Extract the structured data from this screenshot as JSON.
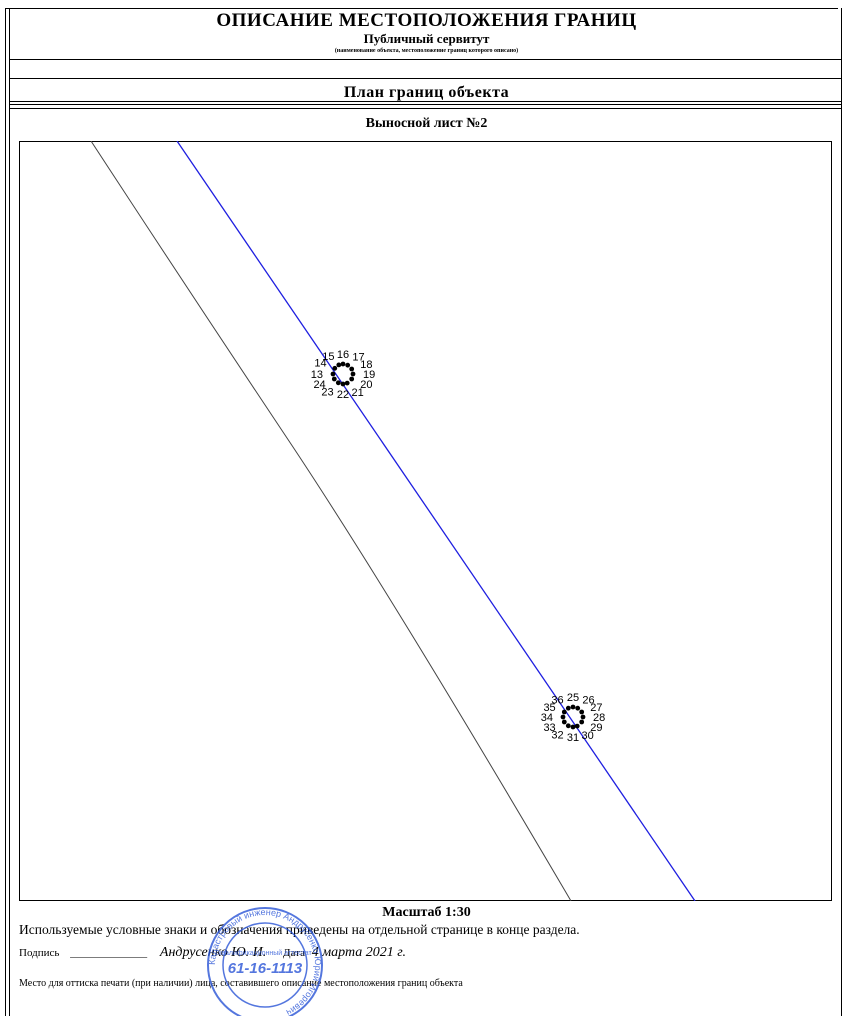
{
  "header": {
    "title": "ОПИСАНИЕ МЕСТОПОЛОЖЕНИЯ ГРАНИЦ",
    "subtitle": "Публичный сервитут",
    "caption": "(наименование объекта, местоположение границ которого описано)"
  },
  "plan": {
    "heading": "План границ объекта",
    "sheet_label": "Выносной лист №2",
    "colors": {
      "boundary_line": "#1f1fe0",
      "road_edge": "#444444",
      "points": "#000000"
    },
    "point_groups": [
      {
        "points": [
          {
            "label": "13",
            "angle": 180
          },
          {
            "label": "14",
            "angle": 145
          },
          {
            "label": "15",
            "angle": 115
          },
          {
            "label": "16",
            "angle": 90
          },
          {
            "label": "17",
            "angle": 62
          },
          {
            "label": "18",
            "angle": 30
          },
          {
            "label": "19",
            "angle": 0
          },
          {
            "label": "20",
            "angle": -30
          },
          {
            "label": "21",
            "angle": -65
          },
          {
            "label": "22",
            "angle": -90
          },
          {
            "label": "23",
            "angle": -118
          },
          {
            "label": "24",
            "angle": -150
          }
        ]
      },
      {
        "points": [
          {
            "label": "25",
            "angle": 90
          },
          {
            "label": "26",
            "angle": 62
          },
          {
            "label": "27",
            "angle": 30
          },
          {
            "label": "28",
            "angle": 0
          },
          {
            "label": "29",
            "angle": -30
          },
          {
            "label": "30",
            "angle": -65
          },
          {
            "label": "31",
            "angle": -90
          },
          {
            "label": "32",
            "angle": -118
          },
          {
            "label": "33",
            "angle": -150
          },
          {
            "label": "34",
            "angle": 180
          },
          {
            "label": "35",
            "angle": 150
          },
          {
            "label": "36",
            "angle": 118
          }
        ]
      }
    ]
  },
  "footer": {
    "scale": "Масштаб 1:30",
    "legend_note": "Используемые условные знаки и обозначения приведены на отдельной странице в конце раздела.",
    "signature_label": "Подпись",
    "signature_blank": "______________",
    "signer": "Андрусенко Ю. И.",
    "date_label": "Дата",
    "date_value": "4 марта 2021 г.",
    "stamp_note": "Место для оттиска печати (при наличии) лица, составившего описание местоположения границ объекта"
  },
  "stamp": {
    "ring_text": "Кадастровый инженер Андрусенко Юрий Игоревич",
    "number": "61-16-1113",
    "inner_text": "квалификационный аттестат",
    "color": "#2a55d6"
  }
}
